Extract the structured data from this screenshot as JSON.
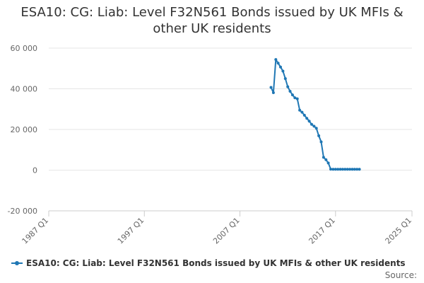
{
  "title_line1": "ESA10: CG: Liab: Level F32N561 Bonds issued by UK MFIs &",
  "title_line2": "other UK residents",
  "source_label": "Source:",
  "chart_data": {
    "type": "line",
    "title": "ESA10: CG: Liab: Level F32N561 Bonds issued by UK MFIs & other UK residents",
    "xlabel": "",
    "ylabel": "",
    "ylim": [
      -20000,
      60000
    ],
    "yticks": [
      60000,
      40000,
      20000,
      0,
      -20000
    ],
    "ytick_labels": [
      "60 000",
      "40 000",
      "20 000",
      "0",
      "-20 000"
    ],
    "xticks": [
      1987,
      1997,
      2007,
      2017,
      2025
    ],
    "xtick_labels": [
      "1987 Q1",
      "1997 Q1",
      "2007 Q1",
      "2017 Q1",
      "2025 Q1"
    ],
    "xlim": [
      1987,
      2025
    ],
    "grid": "horizontal",
    "legend_position": "bottom",
    "color": "#1f77b4",
    "series": [
      {
        "name": "ESA10: CG: Liab: Level F32N561 Bonds issued by UK MFIs & other UK residents",
        "x": [
          "2010 Q2",
          "2010 Q3",
          "2010 Q4",
          "2011 Q1",
          "2011 Q2",
          "2011 Q3",
          "2011 Q4",
          "2012 Q1",
          "2012 Q2",
          "2012 Q3",
          "2012 Q4",
          "2013 Q1",
          "2013 Q2",
          "2013 Q3",
          "2013 Q4",
          "2014 Q1",
          "2014 Q2",
          "2014 Q3",
          "2014 Q4",
          "2015 Q1",
          "2015 Q2",
          "2015 Q3",
          "2015 Q4",
          "2016 Q1",
          "2016 Q2",
          "2016 Q3",
          "2016 Q4",
          "2017 Q1",
          "2017 Q2",
          "2017 Q3",
          "2017 Q4",
          "2018 Q1",
          "2018 Q2",
          "2018 Q3",
          "2018 Q4",
          "2019 Q1",
          "2019 Q2",
          "2019 Q3"
        ],
        "values": [
          40700,
          38100,
          54400,
          52600,
          50700,
          48700,
          45000,
          41000,
          38800,
          37000,
          35600,
          35100,
          29500,
          28500,
          27000,
          25500,
          24100,
          22500,
          21600,
          20600,
          16900,
          13900,
          6300,
          5100,
          3500,
          500,
          400,
          400,
          400,
          400,
          400,
          400,
          400,
          400,
          400,
          400,
          400,
          400
        ]
      }
    ]
  }
}
